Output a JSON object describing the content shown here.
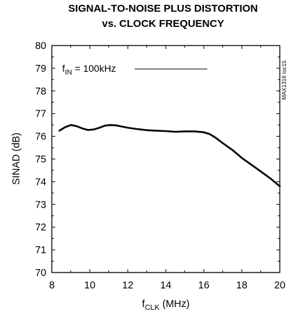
{
  "chart_data": {
    "type": "line",
    "title_line1": "SIGNAL-TO-NOISE PLUS DISTORTION",
    "title_line2": "vs. CLOCK FREQUENCY",
    "xlabel_main": "f",
    "xlabel_sub": "CLK",
    "xlabel_unit": " (MHz)",
    "ylabel": "SINAD (dB)",
    "xlim": [
      8,
      20
    ],
    "ylim": [
      70,
      80
    ],
    "x_ticks": [
      "8",
      "10",
      "12",
      "14",
      "16",
      "18",
      "20"
    ],
    "y_ticks": [
      "70",
      "71",
      "72",
      "73",
      "74",
      "75",
      "76",
      "77",
      "78",
      "79",
      "80"
    ],
    "grid": false,
    "annotation": {
      "main": "f",
      "sub": "IN",
      "rest": " = 100kHz"
    },
    "side_label": "MAX1316 toc15",
    "series": [
      {
        "color": "#000000",
        "x": [
          8.4,
          8.7,
          9.0,
          9.3,
          9.6,
          9.9,
          10.2,
          10.5,
          10.8,
          11.1,
          11.4,
          11.7,
          12.0,
          12.5,
          13.0,
          13.5,
          14.0,
          14.5,
          15.0,
          15.5,
          16.0,
          16.3,
          16.6,
          17.0,
          17.5,
          18.0,
          18.5,
          19.0,
          19.5,
          20.0
        ],
        "y": [
          76.25,
          76.4,
          76.5,
          76.45,
          76.35,
          76.28,
          76.3,
          76.38,
          76.47,
          76.5,
          76.48,
          76.43,
          76.38,
          76.32,
          76.27,
          76.25,
          76.23,
          76.2,
          76.22,
          76.22,
          76.18,
          76.1,
          75.95,
          75.7,
          75.4,
          75.05,
          74.75,
          74.45,
          74.15,
          73.8
        ]
      }
    ]
  }
}
